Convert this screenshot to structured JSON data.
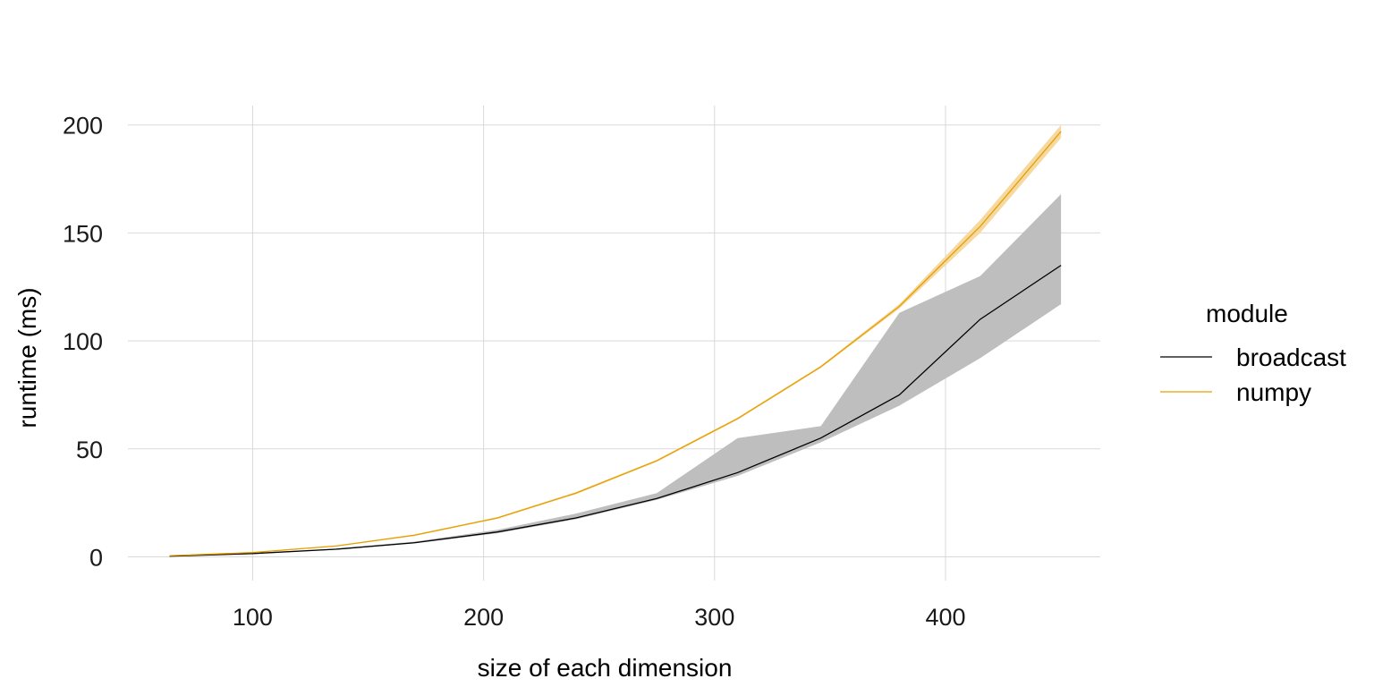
{
  "chart_data": {
    "type": "line",
    "xlabel": "size of each dimension",
    "ylabel": "runtime (ms)",
    "xlim": [
      46,
      467
    ],
    "ylim": [
      -11,
      209
    ],
    "x_ticks": [
      100,
      200,
      300,
      400
    ],
    "y_ticks": [
      0,
      50,
      100,
      150,
      200
    ],
    "grid": true,
    "legend": {
      "title": "module",
      "placement": "right"
    },
    "series": [
      {
        "name": "broadcast",
        "color": "#000000",
        "band_color": "#bebebe",
        "x": [
          64,
          100,
          136,
          170,
          206,
          240,
          275,
          310,
          346,
          380,
          415,
          450
        ],
        "y": [
          0.3,
          1.5,
          3.5,
          6.5,
          11.5,
          18,
          27,
          39,
          55,
          75,
          110,
          135
        ],
        "lower": [
          0.2,
          1.3,
          3.3,
          6.2,
          10.9,
          17.4,
          26.4,
          37.5,
          53,
          70,
          92,
          117
        ],
        "upper": [
          0.4,
          1.8,
          3.8,
          7,
          12.5,
          20,
          29.5,
          55,
          60.5,
          113,
          130,
          168
        ]
      },
      {
        "name": "numpy",
        "color": "#E69F00",
        "band_color": "#f5d9a0",
        "x": [
          64,
          100,
          136,
          170,
          206,
          240,
          275,
          310,
          346,
          380,
          415,
          450
        ],
        "y": [
          0.5,
          2,
          5,
          10,
          18,
          29.5,
          44.5,
          64,
          88,
          116,
          153,
          197
        ],
        "lower": [
          0.4,
          1.8,
          4.8,
          9.7,
          17.6,
          29,
          44,
          63.5,
          87.5,
          115,
          150,
          194
        ],
        "upper": [
          0.6,
          2.2,
          5.2,
          10.3,
          18.4,
          30,
          45,
          64.5,
          88.5,
          117,
          156,
          200
        ]
      }
    ]
  }
}
